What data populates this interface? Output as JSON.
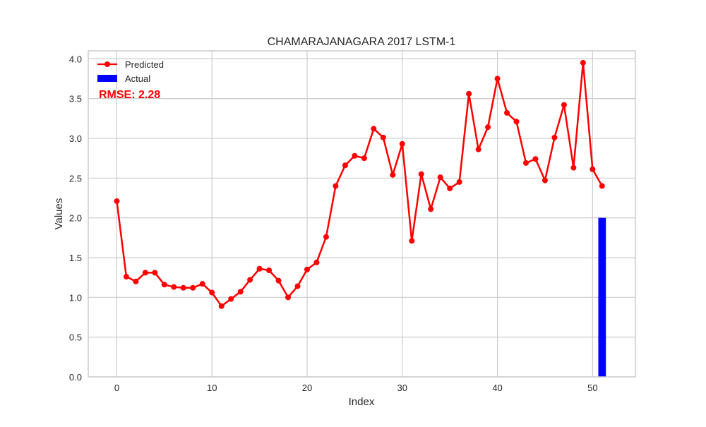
{
  "chart_data": {
    "type": "line",
    "title": "CHAMARAJANAGARA 2017 LSTM-1",
    "xlabel": "Index",
    "ylabel": "Values",
    "xlim": [
      -3,
      54.5
    ],
    "ylim": [
      0,
      4.1
    ],
    "xticks": [
      0,
      10,
      20,
      30,
      40,
      50
    ],
    "yticks": [
      0.0,
      0.5,
      1.0,
      1.5,
      2.0,
      2.5,
      3.0,
      3.5,
      4.0
    ],
    "xtick_labels": [
      "0",
      "10",
      "20",
      "30",
      "40",
      "50"
    ],
    "ytick_labels": [
      "0.0",
      "0.5",
      "1.0",
      "1.5",
      "2.0",
      "2.5",
      "3.0",
      "3.5",
      "4.0"
    ],
    "grid": true,
    "legend_position": "top-left",
    "series": [
      {
        "name": "Predicted",
        "type": "line",
        "color": "#ff0000",
        "x": [
          0,
          1,
          2,
          3,
          4,
          5,
          6,
          7,
          8,
          9,
          10,
          11,
          12,
          13,
          14,
          15,
          16,
          17,
          18,
          19,
          20,
          21,
          22,
          23,
          24,
          25,
          26,
          27,
          28,
          29,
          30,
          31,
          32,
          33,
          34,
          35,
          36,
          37,
          38,
          39,
          40,
          41,
          42,
          43,
          44,
          45,
          46,
          47,
          48,
          49,
          50,
          51
        ],
        "values": [
          2.21,
          1.26,
          1.2,
          1.31,
          1.31,
          1.16,
          1.13,
          1.12,
          1.12,
          1.17,
          1.06,
          0.89,
          0.98,
          1.07,
          1.22,
          1.36,
          1.34,
          1.21,
          1.0,
          1.14,
          1.35,
          1.44,
          1.76,
          2.4,
          2.66,
          2.78,
          2.75,
          3.12,
          3.01,
          2.54,
          2.93,
          1.71,
          2.55,
          2.11,
          2.51,
          2.37,
          2.45,
          3.56,
          2.86,
          3.14,
          3.75,
          3.32,
          3.21,
          2.69,
          2.74,
          2.47,
          3.01,
          3.42,
          2.63,
          3.95,
          2.61,
          2.4
        ]
      },
      {
        "name": "Actual",
        "type": "bar",
        "color": "#0000ff",
        "x": [
          51
        ],
        "values": [
          2.0
        ]
      }
    ],
    "annotation": {
      "text": "RMSE: 2.28",
      "color": "#ff0000"
    }
  }
}
